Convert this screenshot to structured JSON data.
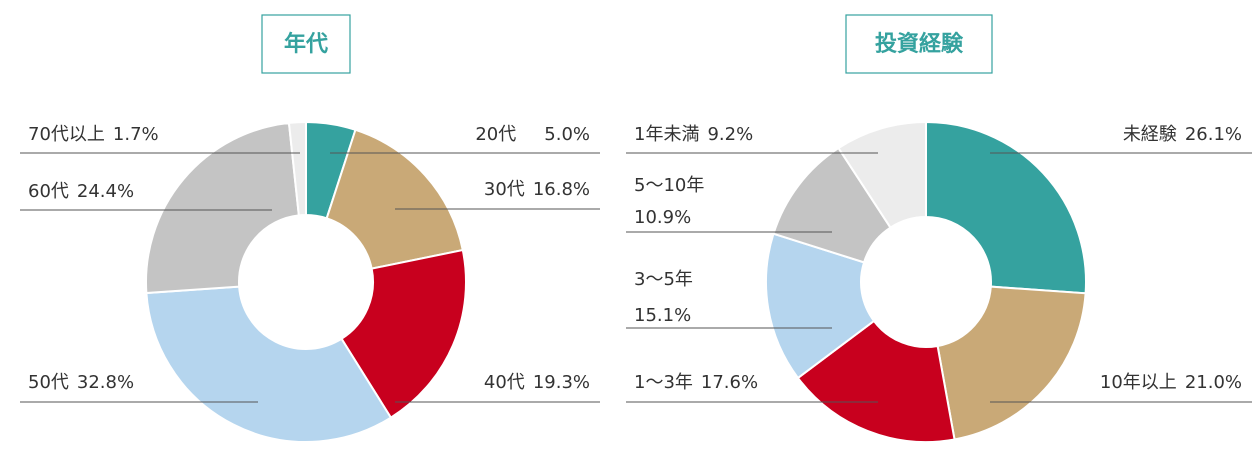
{
  "chart_data": [
    {
      "type": "pie",
      "title": "年代",
      "categories": [
        "20代",
        "30代",
        "40代",
        "50代",
        "60代",
        "70代以上"
      ],
      "values": [
        5.0,
        16.8,
        19.3,
        32.8,
        24.4,
        1.7
      ],
      "value_labels": [
        "5.0%",
        "16.8%",
        "19.3%",
        "32.8%",
        "24.4%",
        "1.7%"
      ],
      "colors": [
        "#35a29f",
        "#c9a977",
        "#c8001e",
        "#b5d5ee",
        "#c4c4c4",
        "#ececec"
      ]
    },
    {
      "type": "pie",
      "title": "投資経験",
      "categories": [
        "未経験",
        "10年以上",
        "1〜3年",
        "3〜5年",
        "5〜10年",
        "1年未満"
      ],
      "values": [
        26.1,
        21.0,
        17.6,
        15.1,
        10.9,
        9.2
      ],
      "value_labels": [
        "26.1%",
        "21.0%",
        "17.6%",
        "15.1%",
        "10.9%",
        "9.2%"
      ],
      "colors": [
        "#35a29f",
        "#c9a977",
        "#c8001e",
        "#b5d5ee",
        "#c4c4c4",
        "#ececec"
      ]
    }
  ]
}
